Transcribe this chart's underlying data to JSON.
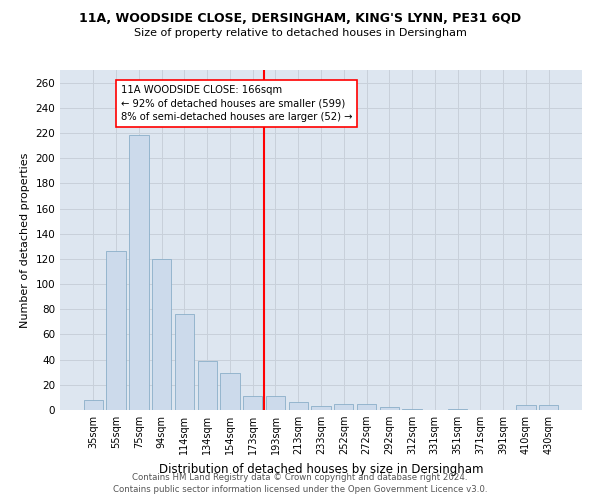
{
  "title1": "11A, WOODSIDE CLOSE, DERSINGHAM, KING'S LYNN, PE31 6QD",
  "title2": "Size of property relative to detached houses in Dersingham",
  "xlabel": "Distribution of detached houses by size in Dersingham",
  "ylabel": "Number of detached properties",
  "bar_color": "#ccdaeb",
  "bar_edgecolor": "#8aaec8",
  "grid_color": "#c8d0da",
  "background_color": "#dde6f0",
  "categories": [
    "35sqm",
    "55sqm",
    "75sqm",
    "94sqm",
    "114sqm",
    "134sqm",
    "154sqm",
    "173sqm",
    "193sqm",
    "213sqm",
    "233sqm",
    "252sqm",
    "272sqm",
    "292sqm",
    "312sqm",
    "331sqm",
    "351sqm",
    "371sqm",
    "391sqm",
    "410sqm",
    "430sqm"
  ],
  "values": [
    8,
    126,
    218,
    120,
    76,
    39,
    29,
    11,
    11,
    6,
    3,
    5,
    5,
    2,
    1,
    0,
    1,
    0,
    0,
    4,
    4
  ],
  "redline_x": 7.5,
  "annotation_line1": "11A WOODSIDE CLOSE: 166sqm",
  "annotation_line2": "← 92% of detached houses are smaller (599)",
  "annotation_line3": "8% of semi-detached houses are larger (52) →",
  "ylim": [
    0,
    270
  ],
  "yticks": [
    0,
    20,
    40,
    60,
    80,
    100,
    120,
    140,
    160,
    180,
    200,
    220,
    240,
    260
  ],
  "footer1": "Contains HM Land Registry data © Crown copyright and database right 2024.",
  "footer2": "Contains public sector information licensed under the Open Government Licence v3.0."
}
